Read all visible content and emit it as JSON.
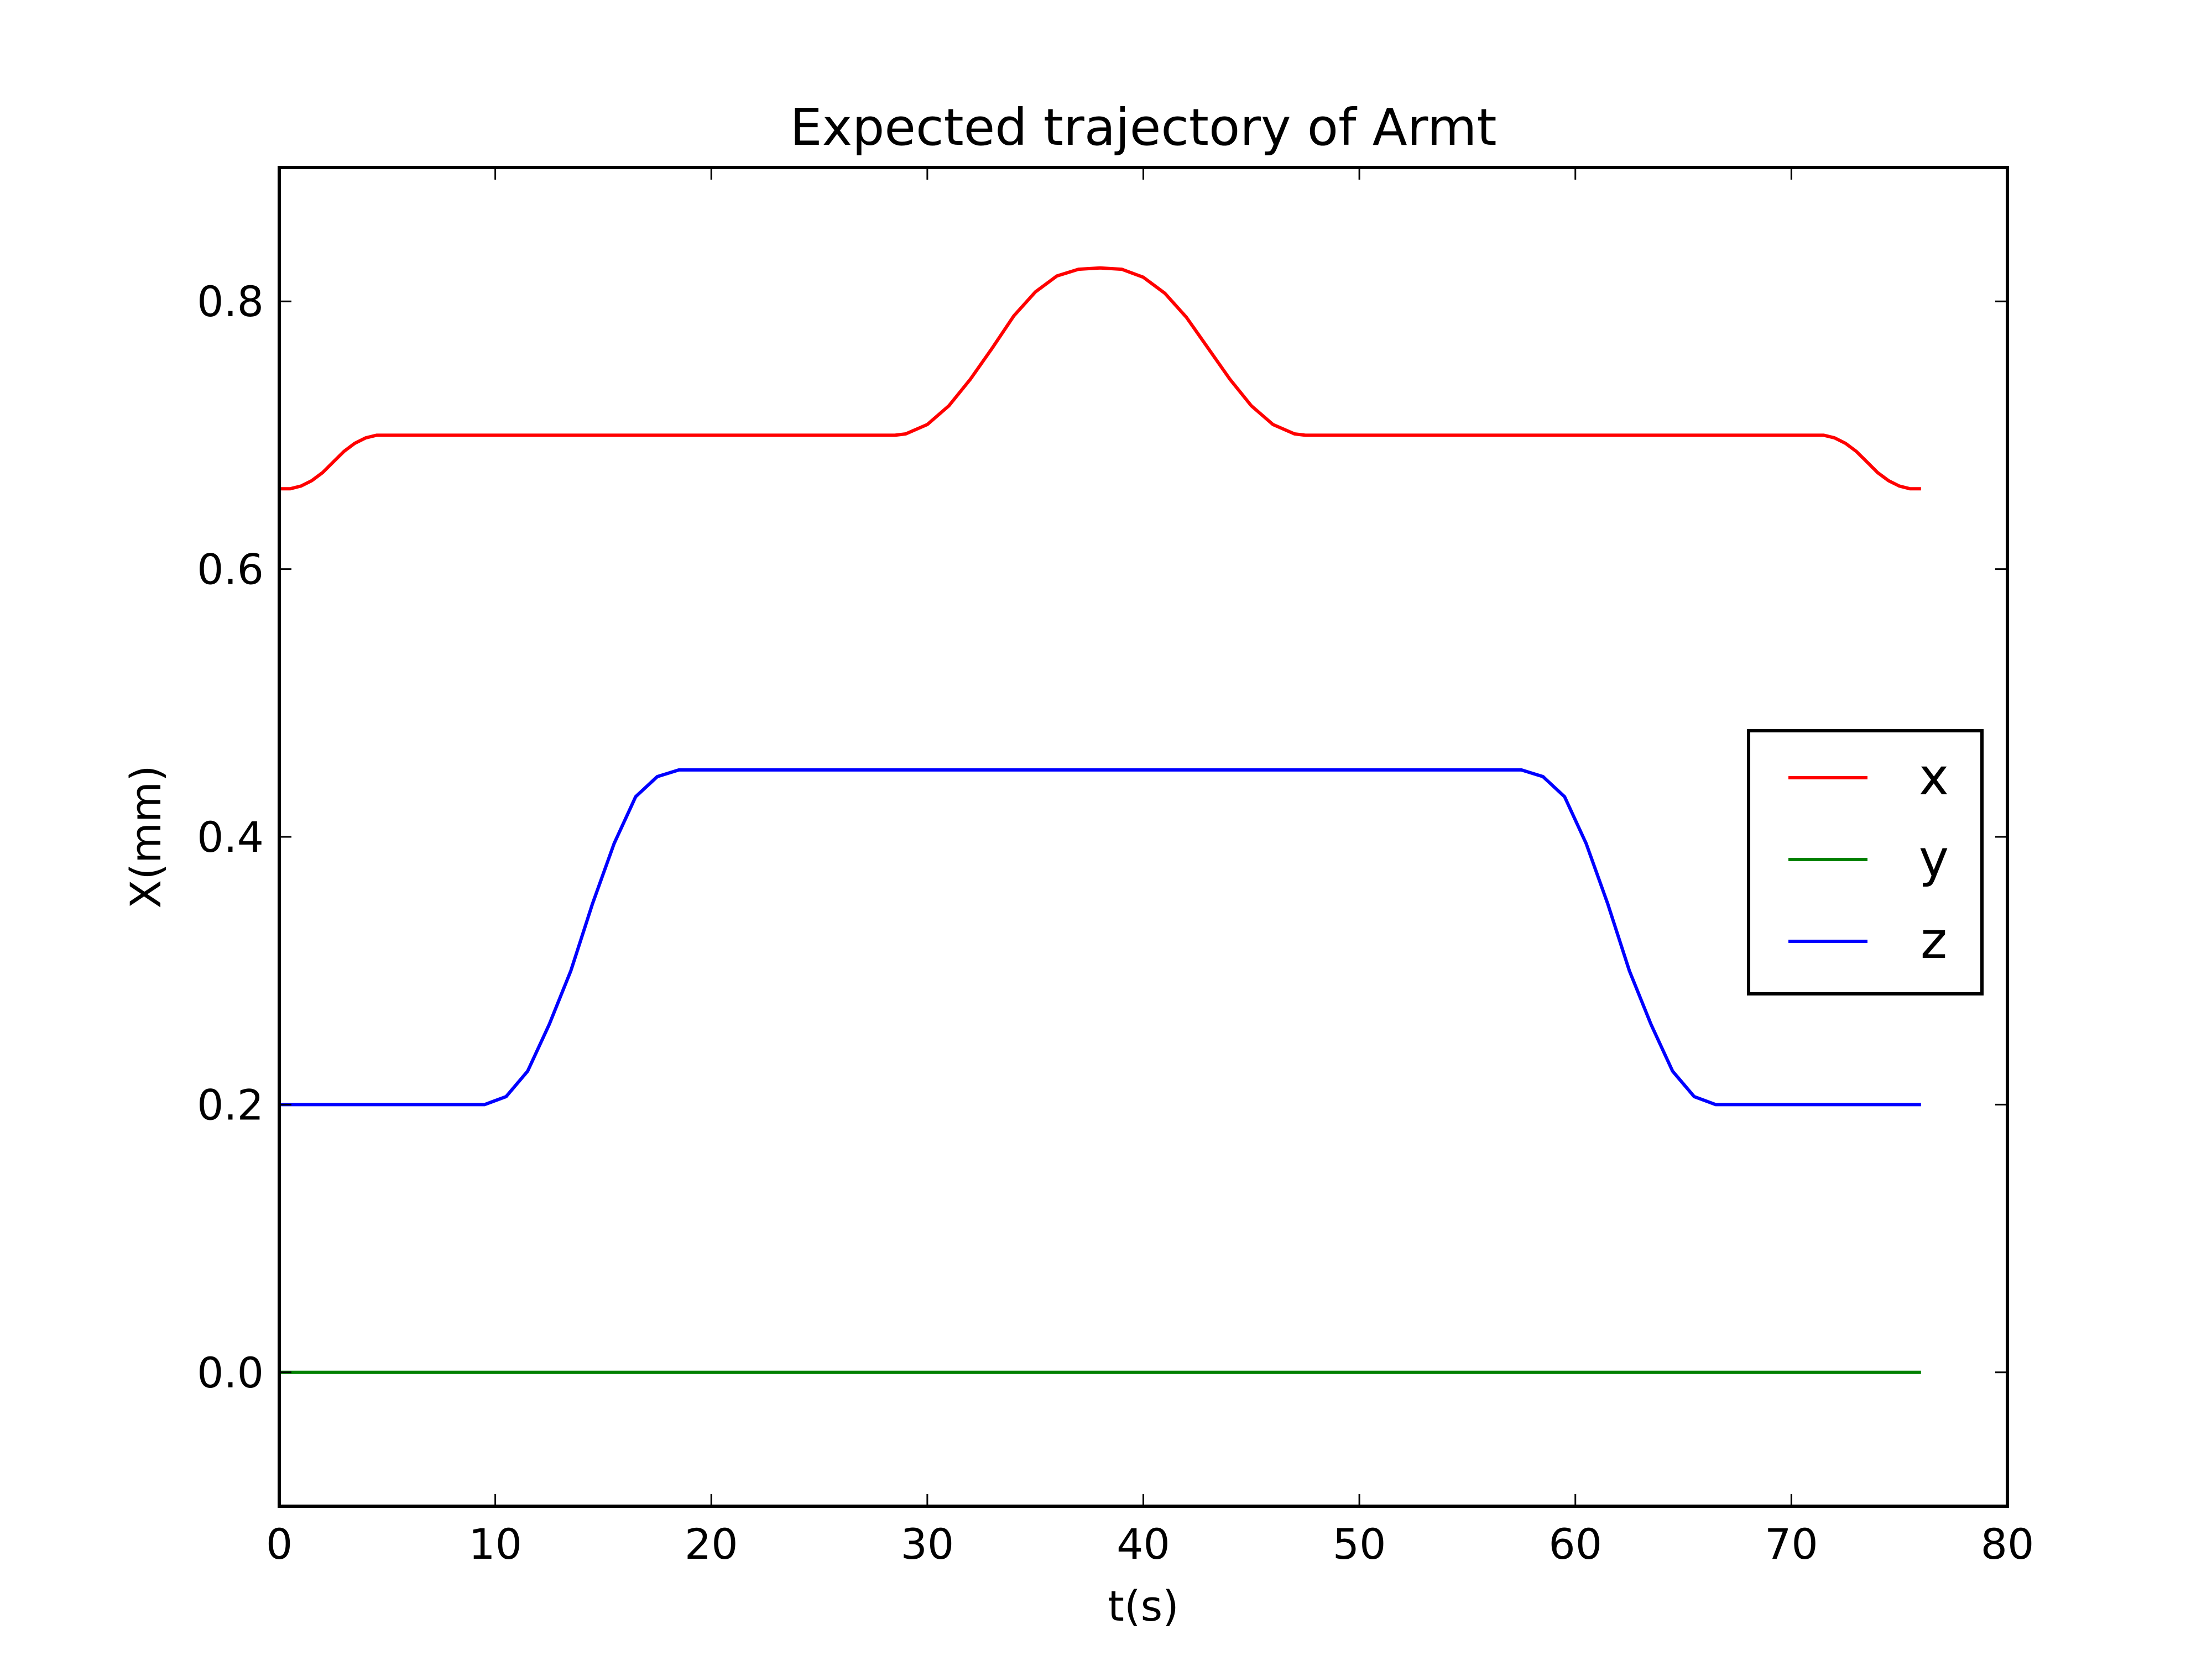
{
  "chart_data": {
    "type": "line",
    "title": "Expected trajectory of Armt",
    "xlabel": "t(s)",
    "ylabel": "X(mm)",
    "xlim": [
      0,
      80
    ],
    "ylim": [
      -0.1,
      0.9
    ],
    "x_ticks": [
      {
        "value": 0,
        "label": "0"
      },
      {
        "value": 10,
        "label": "10"
      },
      {
        "value": 20,
        "label": "20"
      },
      {
        "value": 30,
        "label": "30"
      },
      {
        "value": 40,
        "label": "40"
      },
      {
        "value": 50,
        "label": "50"
      },
      {
        "value": 60,
        "label": "60"
      },
      {
        "value": 70,
        "label": "70"
      },
      {
        "value": 80,
        "label": "80"
      }
    ],
    "y_ticks": [
      {
        "value": 0.0,
        "label": "0.0"
      },
      {
        "value": 0.2,
        "label": "0.2"
      },
      {
        "value": 0.4,
        "label": "0.4"
      },
      {
        "value": 0.6,
        "label": "0.6"
      },
      {
        "value": 0.8,
        "label": "0.8"
      }
    ],
    "grid": false,
    "legend_position": "right",
    "series": [
      {
        "name": "x",
        "color": "#ff0000",
        "x": [
          0,
          0.5,
          1,
          1.5,
          2,
          2.5,
          3,
          3.5,
          4,
          4.5,
          28.5,
          29,
          30,
          31,
          32,
          33,
          34,
          35,
          36,
          37,
          38,
          39,
          40,
          41,
          42,
          43,
          44,
          45,
          46,
          47,
          47.5,
          71.5,
          72,
          72.5,
          73,
          73.5,
          74,
          74.5,
          75,
          75.5,
          76
        ],
        "y": [
          0.66,
          0.66,
          0.662,
          0.666,
          0.672,
          0.68,
          0.688,
          0.694,
          0.698,
          0.7,
          0.7,
          0.701,
          0.708,
          0.722,
          0.742,
          0.765,
          0.789,
          0.807,
          0.819,
          0.824,
          0.825,
          0.824,
          0.818,
          0.806,
          0.788,
          0.765,
          0.742,
          0.722,
          0.708,
          0.701,
          0.7,
          0.7,
          0.698,
          0.694,
          0.688,
          0.68,
          0.672,
          0.666,
          0.662,
          0.66,
          0.66
        ]
      },
      {
        "name": "y",
        "color": "#008000",
        "x": [
          0,
          76
        ],
        "y": [
          0.0,
          0.0
        ]
      },
      {
        "name": "z",
        "color": "#0000ff",
        "x": [
          0,
          9.5,
          10.5,
          11.5,
          12.5,
          13.5,
          14.5,
          15.5,
          16.5,
          17.5,
          18.5,
          57.5,
          58.5,
          59.5,
          60.5,
          61.5,
          62.5,
          63.5,
          64.5,
          65.5,
          66.5,
          76
        ],
        "y": [
          0.2,
          0.2,
          0.206,
          0.225,
          0.26,
          0.3,
          0.35,
          0.395,
          0.43,
          0.445,
          0.45,
          0.45,
          0.445,
          0.43,
          0.395,
          0.35,
          0.3,
          0.26,
          0.225,
          0.206,
          0.2,
          0.2
        ]
      }
    ]
  }
}
